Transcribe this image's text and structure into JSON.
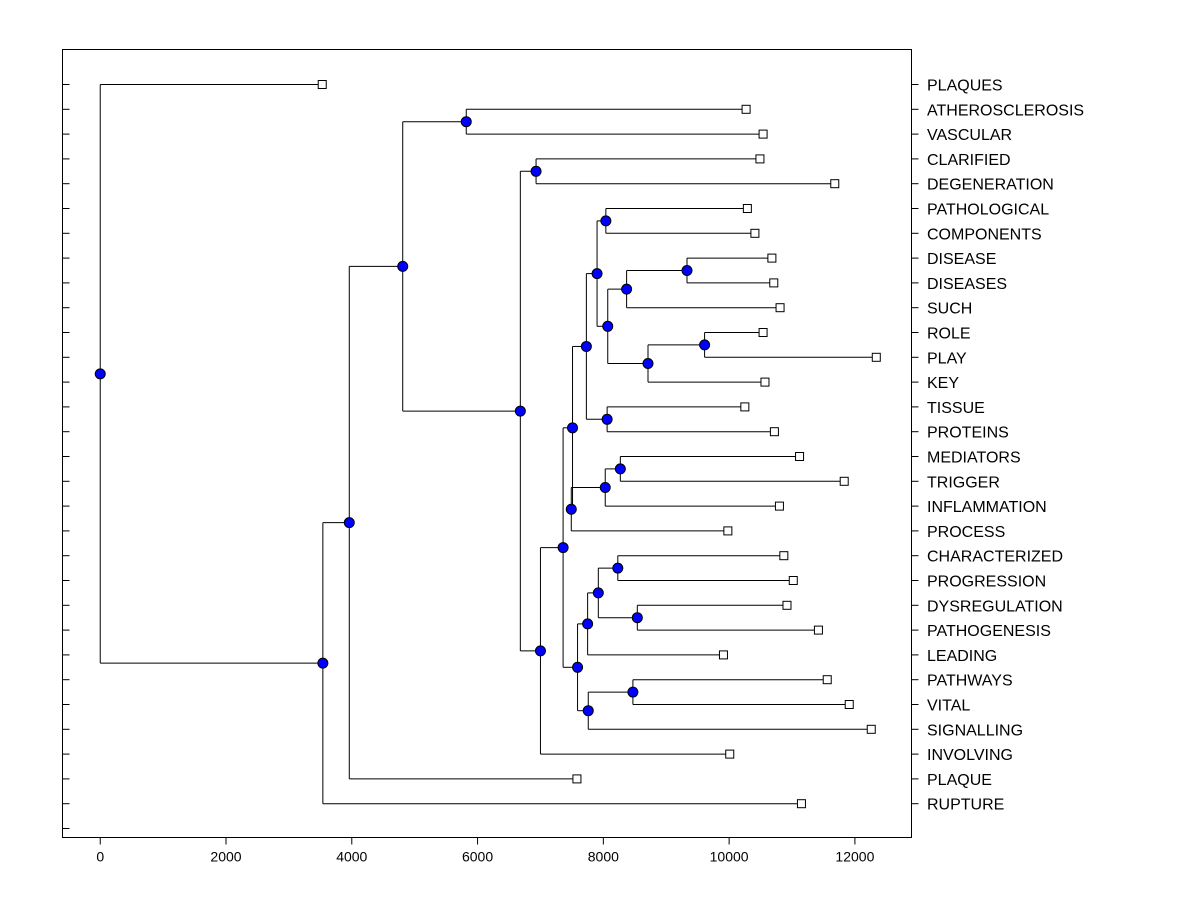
{
  "chart_data": {
    "type": "dendrogram",
    "orientation": "horizontal",
    "title": "",
    "xlabel": "",
    "ylabel": "",
    "xlim": [
      -600,
      12900
    ],
    "xticks": [
      0,
      2000,
      4000,
      6000,
      8000,
      10000,
      12000
    ],
    "xtick_labels": [
      "0",
      "2000",
      "4000",
      "6000",
      "8000",
      "10000",
      "12000"
    ],
    "node_color": "#0000ff",
    "leaves": [
      {
        "id": "PLAQUES",
        "label": "PLAQUES",
        "x": 3530
      },
      {
        "id": "ATHEROSCLEROSIS",
        "label": "ATHEROSCLEROSIS",
        "x": 10270
      },
      {
        "id": "VASCULAR",
        "label": "VASCULAR",
        "x": 10540
      },
      {
        "id": "CLARIFIED",
        "label": "CLARIFIED",
        "x": 10490
      },
      {
        "id": "DEGENERATION",
        "label": "DEGENERATION",
        "x": 11680
      },
      {
        "id": "PATHOLOGICAL",
        "label": "PATHOLOGICAL",
        "x": 10290
      },
      {
        "id": "COMPONENTS",
        "label": "COMPONENTS",
        "x": 10410
      },
      {
        "id": "DISEASE",
        "label": "DISEASE",
        "x": 10680
      },
      {
        "id": "DISEASES",
        "label": "DISEASES",
        "x": 10710
      },
      {
        "id": "SUCH",
        "label": "SUCH",
        "x": 10810
      },
      {
        "id": "ROLE",
        "label": "ROLE",
        "x": 10540
      },
      {
        "id": "PLAY",
        "label": "PLAY",
        "x": 12340
      },
      {
        "id": "KEY",
        "label": "KEY",
        "x": 10570
      },
      {
        "id": "TISSUE",
        "label": "TISSUE",
        "x": 10250
      },
      {
        "id": "PROTEINS",
        "label": "PROTEINS",
        "x": 10720
      },
      {
        "id": "MEDIATORS",
        "label": "MEDIATORS",
        "x": 11120
      },
      {
        "id": "TRIGGER",
        "label": "TRIGGER",
        "x": 11830
      },
      {
        "id": "INFLAMMATION",
        "label": "INFLAMMATION",
        "x": 10800
      },
      {
        "id": "PROCESS",
        "label": "PROCESS",
        "x": 9980
      },
      {
        "id": "CHARACTERIZED",
        "label": "CHARACTERIZED",
        "x": 10870
      },
      {
        "id": "PROGRESSION",
        "label": "PROGRESSION",
        "x": 11020
      },
      {
        "id": "DYSREGULATION",
        "label": "DYSREGULATION",
        "x": 10920
      },
      {
        "id": "PATHOGENESIS",
        "label": "PATHOGENESIS",
        "x": 11420
      },
      {
        "id": "LEADING",
        "label": "LEADING",
        "x": 9910
      },
      {
        "id": "PATHWAYS",
        "label": "PATHWAYS",
        "x": 11560
      },
      {
        "id": "VITAL",
        "label": "VITAL",
        "x": 11910
      },
      {
        "id": "SIGNALLING",
        "label": "SIGNALLING",
        "x": 12260
      },
      {
        "id": "INVOLVING",
        "label": "INVOLVING",
        "x": 10010
      },
      {
        "id": "PLAQUE",
        "label": "PLAQUE",
        "x": 7580
      },
      {
        "id": "RUPTURE",
        "label": "RUPTURE",
        "x": 11150
      }
    ],
    "merges": [
      {
        "id": "m_athero_vasc",
        "x": 5820,
        "children": [
          "ATHEROSCLEROSIS",
          "VASCULAR"
        ]
      },
      {
        "id": "m_clar_degen",
        "x": 6930,
        "children": [
          "CLARIFIED",
          "DEGENERATION"
        ]
      },
      {
        "id": "m_path_comp",
        "x": 8040,
        "children": [
          "PATHOLOGICAL",
          "COMPONENTS"
        ]
      },
      {
        "id": "m_disease_diseases",
        "x": 9330,
        "children": [
          "DISEASE",
          "DISEASES"
        ]
      },
      {
        "id": "m_dis_such",
        "x": 8370,
        "children": [
          "m_disease_diseases",
          "SUCH"
        ]
      },
      {
        "id": "m_role_play",
        "x": 9610,
        "children": [
          "ROLE",
          "PLAY"
        ]
      },
      {
        "id": "m_roleplay_key",
        "x": 8710,
        "children": [
          "m_role_play",
          "KEY"
        ]
      },
      {
        "id": "m_dis_key",
        "x": 8070,
        "children": [
          "m_dis_such",
          "m_roleplay_key"
        ]
      },
      {
        "id": "m_path_dis",
        "x": 7900,
        "children": [
          "m_path_comp",
          "m_dis_key"
        ]
      },
      {
        "id": "m_tissue_proteins",
        "x": 8060,
        "children": [
          "TISSUE",
          "PROTEINS"
        ]
      },
      {
        "id": "m_path_tissue",
        "x": 7730,
        "children": [
          "m_path_dis",
          "m_tissue_proteins"
        ]
      },
      {
        "id": "m_med_trig",
        "x": 8270,
        "children": [
          "MEDIATORS",
          "TRIGGER"
        ]
      },
      {
        "id": "m_medtrig_infl",
        "x": 8030,
        "children": [
          "m_med_trig",
          "INFLAMMATION"
        ]
      },
      {
        "id": "m_infl_process",
        "x": 7490,
        "children": [
          "m_medtrig_infl",
          "PROCESS"
        ]
      },
      {
        "id": "m_upper_core",
        "x": 7510,
        "children": [
          "m_path_tissue",
          "m_infl_process"
        ]
      },
      {
        "id": "m_char_prog",
        "x": 8230,
        "children": [
          "CHARACTERIZED",
          "PROGRESSION"
        ]
      },
      {
        "id": "m_dys_patho",
        "x": 8540,
        "children": [
          "DYSREGULATION",
          "PATHOGENESIS"
        ]
      },
      {
        "id": "m_char_dys",
        "x": 7920,
        "children": [
          "m_char_prog",
          "m_dys_patho"
        ]
      },
      {
        "id": "m_char_leading",
        "x": 7750,
        "children": [
          "m_char_dys",
          "LEADING"
        ]
      },
      {
        "id": "m_path_vital",
        "x": 8470,
        "children": [
          "PATHWAYS",
          "VITAL"
        ]
      },
      {
        "id": "m_pv_signal",
        "x": 7760,
        "children": [
          "m_path_vital",
          "SIGNALLING"
        ]
      },
      {
        "id": "m_lower_core",
        "x": 7590,
        "children": [
          "m_char_leading",
          "m_pv_signal"
        ]
      },
      {
        "id": "m_core",
        "x": 7360,
        "children": [
          "m_upper_core",
          "m_lower_core"
        ]
      },
      {
        "id": "m_core_involving",
        "x": 7000,
        "children": [
          "m_core",
          "INVOLVING"
        ]
      },
      {
        "id": "m_clar_core",
        "x": 6680,
        "children": [
          "m_clar_degen",
          "m_core_involving"
        ]
      },
      {
        "id": "m_athero_all",
        "x": 4810,
        "children": [
          "m_athero_vasc",
          "m_clar_core"
        ]
      },
      {
        "id": "m_with_plaque",
        "x": 3960,
        "children": [
          "m_athero_all",
          "PLAQUE"
        ]
      },
      {
        "id": "m_with_rupture",
        "x": 3540,
        "children": [
          "m_with_plaque",
          "RUPTURE"
        ]
      },
      {
        "id": "m_root",
        "x": 0,
        "children": [
          "PLAQUES",
          "m_with_rupture"
        ]
      }
    ]
  }
}
